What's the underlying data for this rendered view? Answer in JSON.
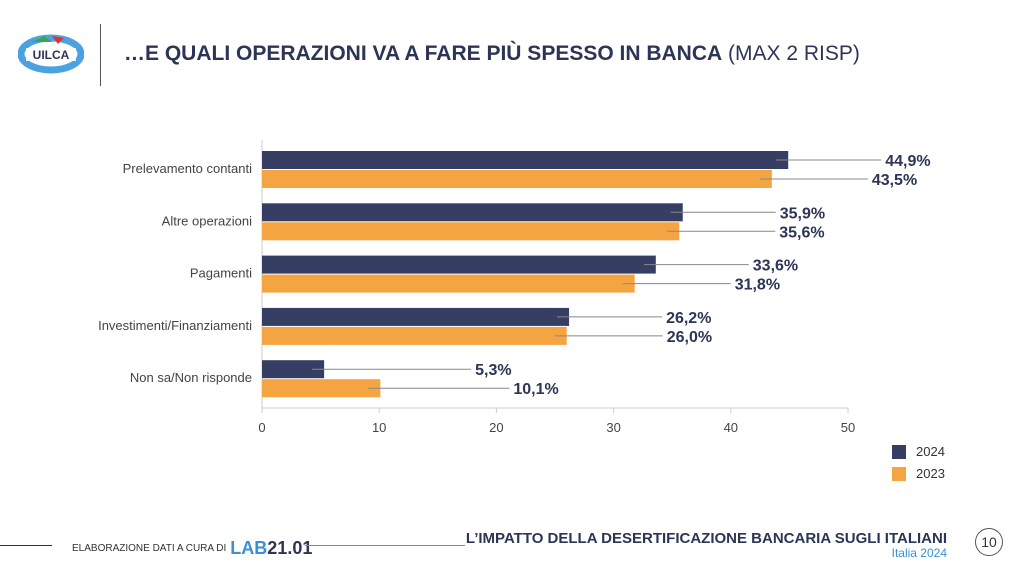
{
  "header": {
    "logo_text": "UILCA",
    "title_bold": "…E QUALI OPERAZIONI VA A FARE PIÙ SPESSO IN BANCA",
    "title_light": " (MAX 2 RISP)"
  },
  "chart_data": {
    "type": "bar",
    "orientation": "horizontal",
    "categories": [
      "Prelevamento contanti",
      "Altre operazioni",
      "Pagamenti",
      "Investimenti/Finanziamenti",
      "Non sa/Non risponde"
    ],
    "series": [
      {
        "name": "2024",
        "color": "#363f63",
        "values": [
          44.9,
          35.9,
          33.6,
          26.2,
          5.3
        ],
        "labels": [
          "44,9%",
          "35,9%",
          "33,6%",
          "26,2%",
          "5,3%"
        ]
      },
      {
        "name": "2023",
        "color": "#f5a442",
        "values": [
          43.5,
          35.6,
          31.8,
          26.0,
          10.1
        ],
        "labels": [
          "43,5%",
          "35,6%",
          "31,8%",
          "26,0%",
          "10,1%"
        ]
      }
    ],
    "xlim": [
      0,
      50
    ],
    "xticks": [
      "0",
      "10",
      "20",
      "30",
      "40",
      "50"
    ],
    "grid": false,
    "legend": "bottom-right"
  },
  "footer": {
    "credit": "ELABORAZIONE DATI A CURA DI",
    "lab_a": "LAB",
    "lab_b": "21.01",
    "title": "L’IMPATTO DELLA DESERTIFICAZIONE BANCARIA SUGLI ITALIANI",
    "subtitle": "Italia 2024",
    "page": "10"
  }
}
